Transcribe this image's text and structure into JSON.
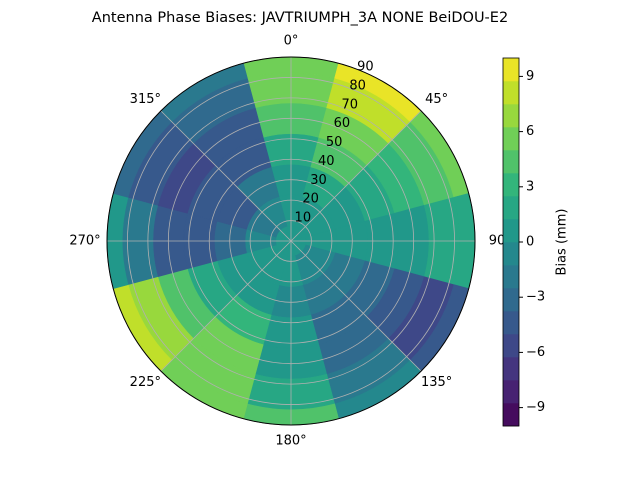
{
  "chart_data": {
    "type": "polar_contour",
    "title": "Antenna Phase Biases: JAVTRIUMPH_3A   NONE BeiDOU-E2",
    "theta_ticks": [
      {
        "value": 0,
        "label": "0°"
      },
      {
        "value": 45,
        "label": "45°"
      },
      90,
      {
        "value": 135,
        "label": "135°"
      },
      {
        "value": 180,
        "label": "180°"
      },
      {
        "value": 225,
        "label": "225°"
      },
      {
        "value": 270,
        "label": "270°"
      },
      {
        "value": 315,
        "label": "315°"
      }
    ],
    "rlim": [
      0,
      90
    ],
    "rticks": [
      10,
      20,
      30,
      40,
      50,
      60,
      70,
      80,
      90
    ],
    "azimuth": [
      0,
      30,
      60,
      90,
      120,
      150,
      180,
      210,
      240,
      270,
      300,
      330
    ],
    "zenith": [
      0,
      15,
      30,
      45,
      60,
      75,
      90
    ],
    "z": [
      [
        0,
        0,
        0,
        0,
        0,
        0,
        0,
        0,
        0,
        0,
        0,
        0
      ],
      [
        0,
        1,
        0,
        0,
        -1,
        -1,
        0,
        0,
        0,
        -1,
        -2,
        -1
      ],
      [
        1,
        2,
        1,
        0,
        -2,
        -2,
        -1,
        1,
        0,
        -3,
        -4,
        -2
      ],
      [
        2,
        4,
        2,
        1,
        -3,
        -3,
        0,
        3,
        2,
        -4,
        -5,
        -4
      ],
      [
        4,
        6,
        3,
        1,
        -5,
        -3,
        1,
        5,
        4,
        -4,
        -6,
        -4
      ],
      [
        5,
        8,
        4,
        2,
        -6,
        -2,
        2,
        6,
        7,
        -2,
        -5,
        -3
      ],
      [
        5,
        9,
        5,
        2,
        -4,
        -1,
        4,
        6,
        8,
        0,
        -3,
        -2
      ]
    ],
    "levels": 16,
    "zlim": [
      -10,
      10
    ],
    "zticks": [
      {
        "value": -9,
        "label": "−9"
      },
      {
        "value": -6,
        "label": "−6"
      },
      {
        "value": -3,
        "label": "−3"
      },
      0,
      3,
      6,
      9
    ],
    "zlabel": "Bias (mm)",
    "grid": true
  }
}
